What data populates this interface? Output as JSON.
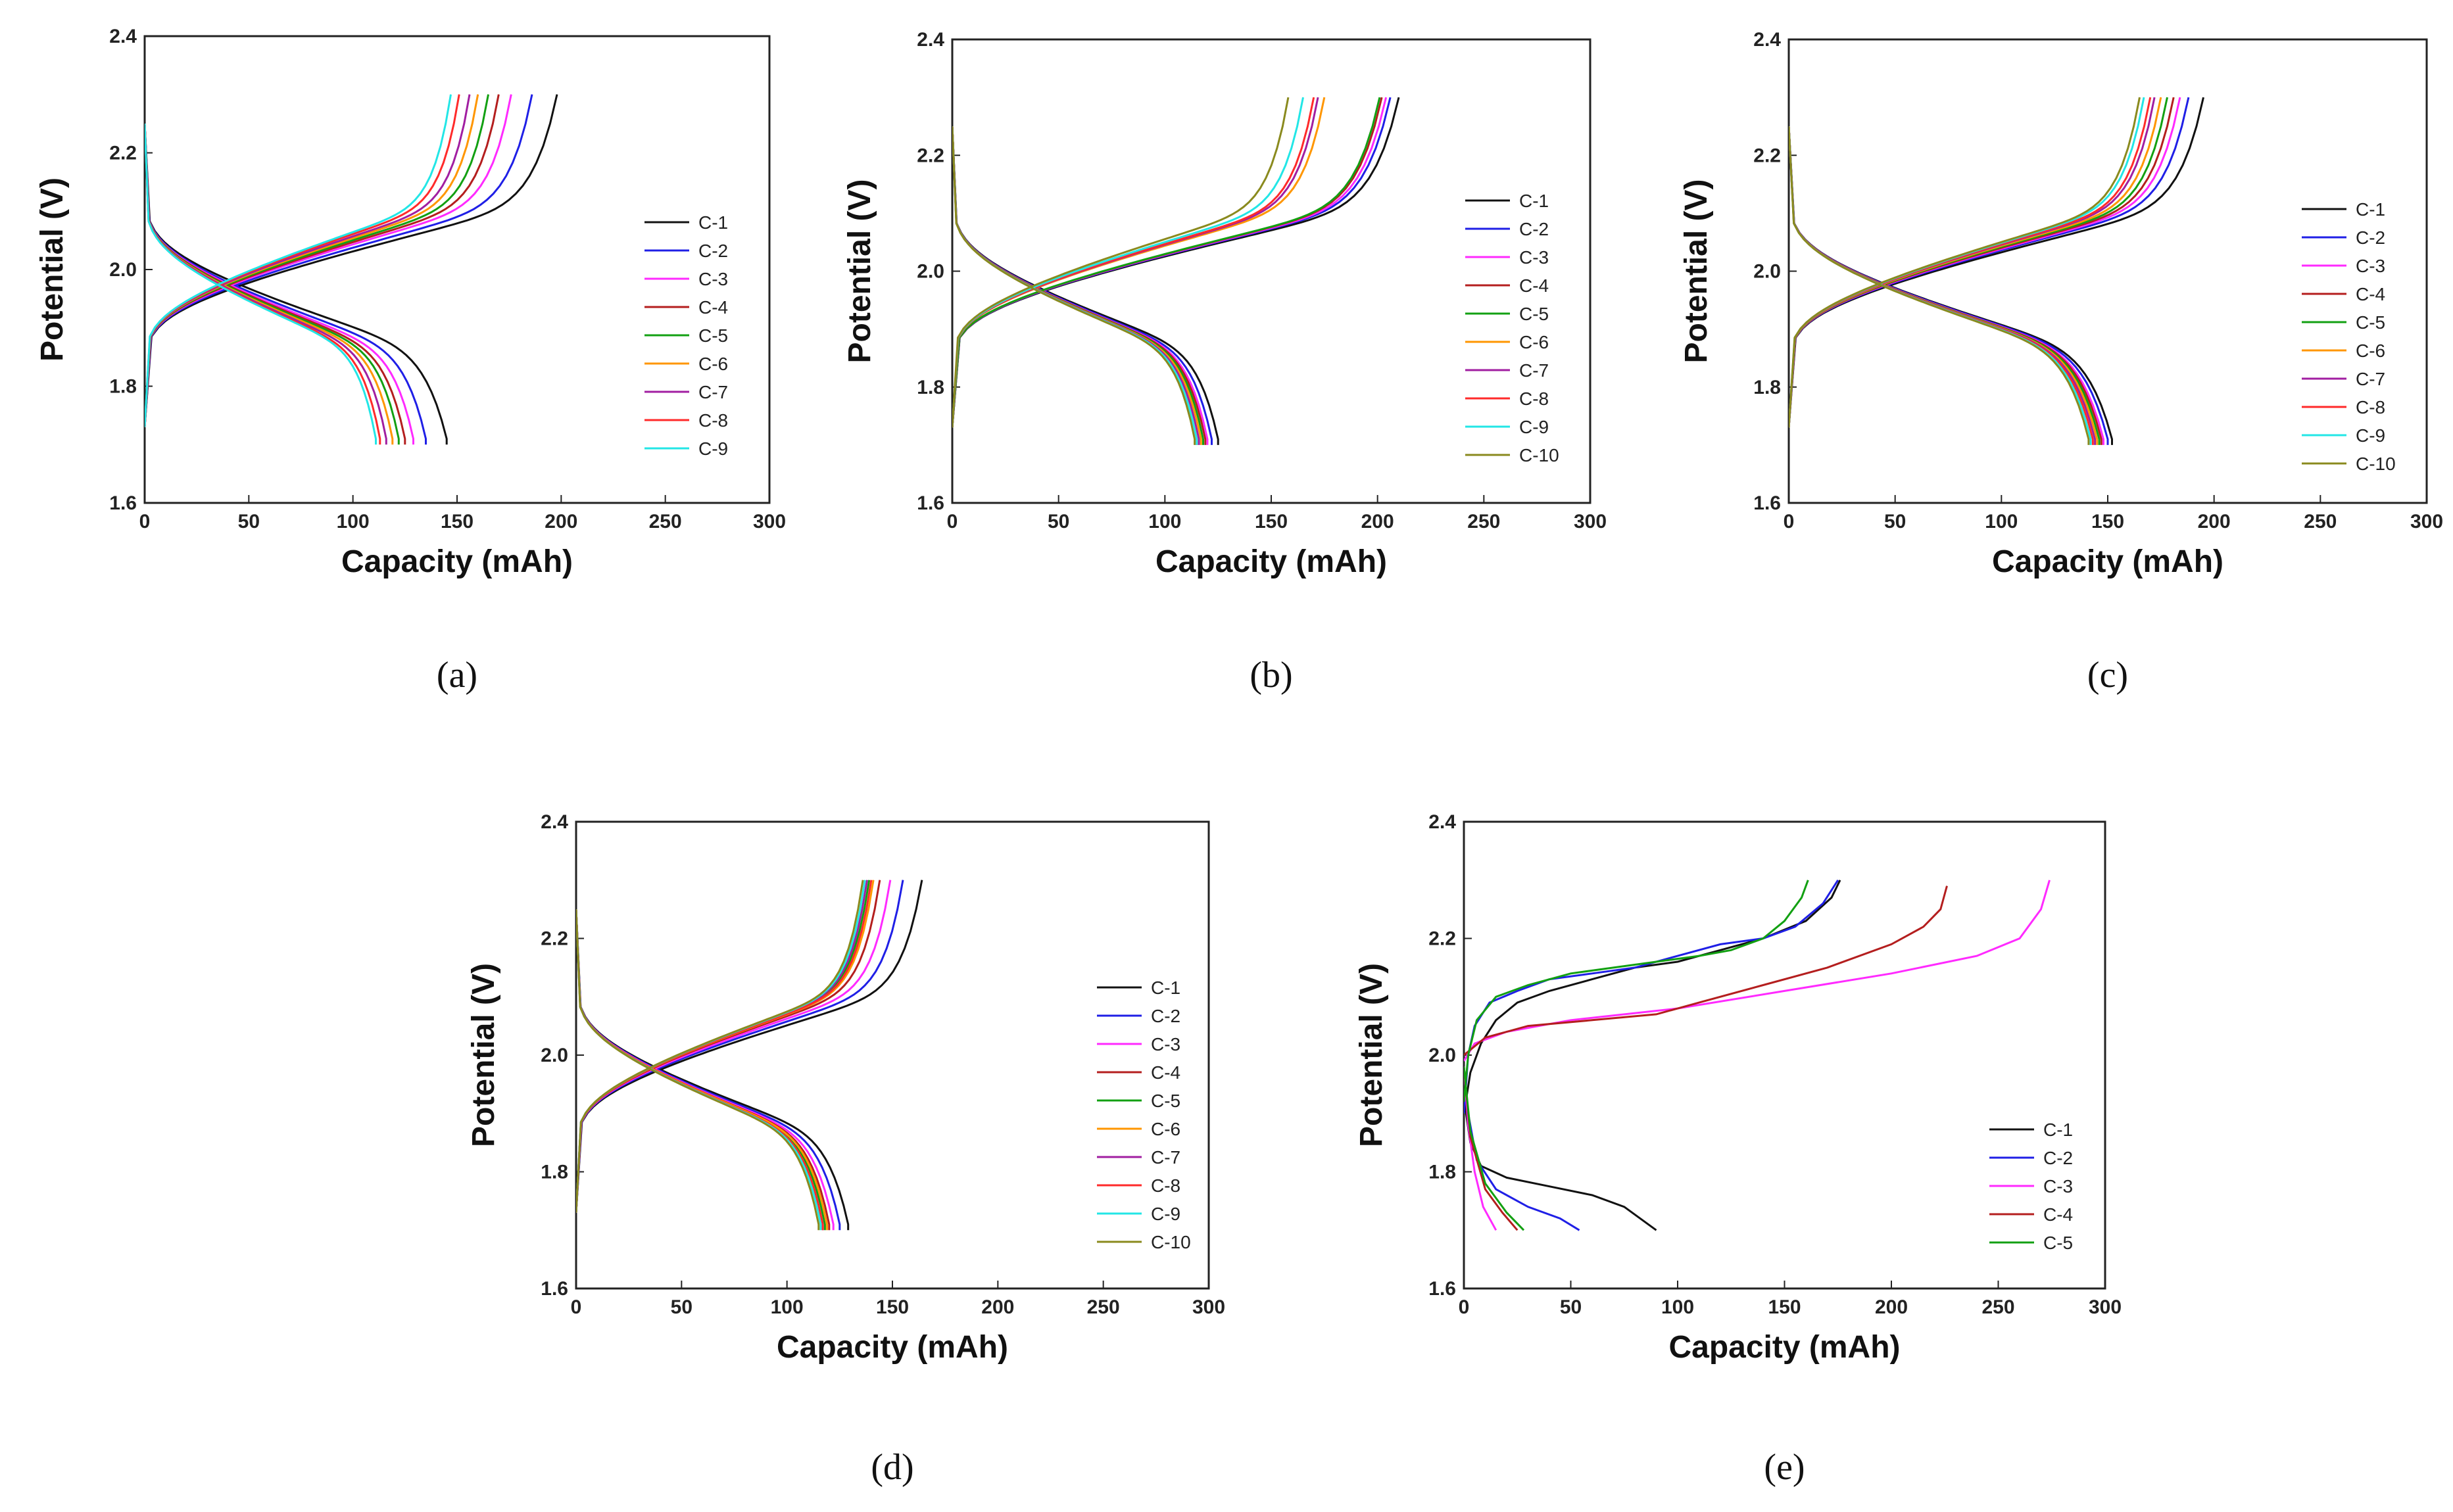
{
  "colors": {
    "C-1": "#111111",
    "C-2": "#1f1fe6",
    "C-3": "#ff2aff",
    "C-4": "#b41e1e",
    "C-5": "#12a012",
    "C-6": "#ff9600",
    "C-7": "#a11ea1",
    "C-8": "#ff2a2a",
    "C-9": "#22e6e6",
    "C-10": "#8a8a1e"
  },
  "chart_data": [
    {
      "panel": "(a)",
      "type": "line",
      "xlabel": "Capacity (mAh)",
      "ylabel": "Potential (V)",
      "xlim": [
        0,
        300
      ],
      "ylim": [
        1.6,
        2.4
      ],
      "xticks": [
        "0",
        "50",
        "100",
        "150",
        "200",
        "250",
        "300"
      ],
      "yticks": [
        "1.6",
        "1.8",
        "2.0",
        "2.2",
        "2.4"
      ],
      "legend": "right",
      "series": [
        {
          "name": "C-1",
          "charge_end": 198,
          "discharge_end": 145
        },
        {
          "name": "C-2",
          "charge_end": 186,
          "discharge_end": 135
        },
        {
          "name": "C-3",
          "charge_end": 176,
          "discharge_end": 129
        },
        {
          "name": "C-4",
          "charge_end": 170,
          "discharge_end": 125
        },
        {
          "name": "C-5",
          "charge_end": 165,
          "discharge_end": 122
        },
        {
          "name": "C-6",
          "charge_end": 160,
          "discharge_end": 119
        },
        {
          "name": "C-7",
          "charge_end": 156,
          "discharge_end": 116
        },
        {
          "name": "C-8",
          "charge_end": 151,
          "discharge_end": 113
        },
        {
          "name": "C-9",
          "charge_end": 147,
          "discharge_end": 111
        }
      ]
    },
    {
      "panel": "(b)",
      "type": "line",
      "xlabel": "Capacity (mAh)",
      "ylabel": "Potential (V)",
      "xlim": [
        0,
        300
      ],
      "ylim": [
        1.6,
        2.4
      ],
      "xticks": [
        "0",
        "50",
        "100",
        "150",
        "200",
        "250",
        "300"
      ],
      "yticks": [
        "1.6",
        "1.8",
        "2.0",
        "2.2",
        "2.4"
      ],
      "legend": "right",
      "series": [
        {
          "name": "C-1",
          "charge_end": 210,
          "discharge_end": 125
        },
        {
          "name": "C-2",
          "charge_end": 206,
          "discharge_end": 122
        },
        {
          "name": "C-3",
          "charge_end": 204,
          "discharge_end": 120
        },
        {
          "name": "C-4",
          "charge_end": 202,
          "discharge_end": 119
        },
        {
          "name": "C-5",
          "charge_end": 201,
          "discharge_end": 118
        },
        {
          "name": "C-6",
          "charge_end": 175,
          "discharge_end": 117
        },
        {
          "name": "C-7",
          "charge_end": 172,
          "discharge_end": 116
        },
        {
          "name": "C-8",
          "charge_end": 170,
          "discharge_end": 115
        },
        {
          "name": "C-9",
          "charge_end": 165,
          "discharge_end": 115
        },
        {
          "name": "C-10",
          "charge_end": 158,
          "discharge_end": 114
        }
      ]
    },
    {
      "panel": "(c)",
      "type": "line",
      "xlabel": "Capacity (mAh)",
      "ylabel": "Potential (V)",
      "xlim": [
        0,
        300
      ],
      "ylim": [
        1.6,
        2.4
      ],
      "xticks": [
        "0",
        "50",
        "100",
        "150",
        "200",
        "250",
        "300"
      ],
      "yticks": [
        "1.6",
        "1.8",
        "2.0",
        "2.2",
        "2.4"
      ],
      "legend": "right",
      "series": [
        {
          "name": "C-1",
          "charge_end": 195,
          "discharge_end": 152
        },
        {
          "name": "C-2",
          "charge_end": 188,
          "discharge_end": 150
        },
        {
          "name": "C-3",
          "charge_end": 184,
          "discharge_end": 148
        },
        {
          "name": "C-4",
          "charge_end": 181,
          "discharge_end": 147
        },
        {
          "name": "C-5",
          "charge_end": 178,
          "discharge_end": 146
        },
        {
          "name": "C-6",
          "charge_end": 175,
          "discharge_end": 145
        },
        {
          "name": "C-7",
          "charge_end": 172,
          "discharge_end": 144
        },
        {
          "name": "C-8",
          "charge_end": 170,
          "discharge_end": 143
        },
        {
          "name": "C-9",
          "charge_end": 167,
          "discharge_end": 142
        },
        {
          "name": "C-10",
          "charge_end": 165,
          "discharge_end": 141
        }
      ]
    },
    {
      "panel": "(d)",
      "type": "line",
      "xlabel": "Capacity (mAh)",
      "ylabel": "Potential (V)",
      "xlim": [
        0,
        300
      ],
      "ylim": [
        1.6,
        2.4
      ],
      "xticks": [
        "0",
        "50",
        "100",
        "150",
        "200",
        "250",
        "300"
      ],
      "yticks": [
        "1.6",
        "1.8",
        "2.0",
        "2.2",
        "2.4"
      ],
      "legend": "right",
      "series": [
        {
          "name": "C-1",
          "charge_end": 164,
          "discharge_end": 129
        },
        {
          "name": "C-2",
          "charge_end": 155,
          "discharge_end": 125
        },
        {
          "name": "C-3",
          "charge_end": 149,
          "discharge_end": 122
        },
        {
          "name": "C-4",
          "charge_end": 144,
          "discharge_end": 120
        },
        {
          "name": "C-5",
          "charge_end": 139,
          "discharge_end": 118
        },
        {
          "name": "C-6",
          "charge_end": 141,
          "discharge_end": 119
        },
        {
          "name": "C-7",
          "charge_end": 138,
          "discharge_end": 117
        },
        {
          "name": "C-8",
          "charge_end": 140,
          "discharge_end": 117
        },
        {
          "name": "C-9",
          "charge_end": 137,
          "discharge_end": 116
        },
        {
          "name": "C-10",
          "charge_end": 136,
          "discharge_end": 115
        }
      ]
    },
    {
      "panel": "(e)",
      "type": "line",
      "xlabel": "Capacity (mAh)",
      "ylabel": "Potential (V)",
      "xlim": [
        0,
        300
      ],
      "ylim": [
        1.6,
        2.4
      ],
      "xticks": [
        "0",
        "50",
        "100",
        "150",
        "200",
        "250",
        "300"
      ],
      "yticks": [
        "1.6",
        "1.8",
        "2.0",
        "2.2",
        "2.4"
      ],
      "legend": "bottom-right",
      "series": [
        {
          "name": "C-1",
          "charge": [
            [
              0,
              1.9
            ],
            [
              3,
              1.97
            ],
            [
              8,
              2.02
            ],
            [
              15,
              2.06
            ],
            [
              25,
              2.09
            ],
            [
              40,
              2.11
            ],
            [
              60,
              2.13
            ],
            [
              80,
              2.15
            ],
            [
              100,
              2.16
            ],
            [
              120,
              2.18
            ],
            [
              140,
              2.2
            ],
            [
              160,
              2.23
            ],
            [
              172,
              2.27
            ],
            [
              176,
              2.3
            ]
          ],
          "discharge": [
            [
              0,
              1.98
            ],
            [
              1,
              1.9
            ],
            [
              3,
              1.85
            ],
            [
              8,
              1.81
            ],
            [
              20,
              1.79
            ],
            [
              40,
              1.775
            ],
            [
              60,
              1.76
            ],
            [
              75,
              1.74
            ],
            [
              90,
              1.7
            ]
          ]
        },
        {
          "name": "C-2",
          "charge": [
            [
              0,
              1.9
            ],
            [
              2,
              2.0
            ],
            [
              5,
              2.05
            ],
            [
              12,
              2.09
            ],
            [
              25,
              2.11
            ],
            [
              40,
              2.13
            ],
            [
              60,
              2.14
            ],
            [
              80,
              2.15
            ],
            [
              100,
              2.17
            ],
            [
              120,
              2.19
            ],
            [
              140,
              2.2
            ],
            [
              155,
              2.22
            ],
            [
              168,
              2.26
            ],
            [
              175,
              2.3
            ]
          ],
          "discharge": [
            [
              0,
              1.98
            ],
            [
              2,
              1.9
            ],
            [
              6,
              1.82
            ],
            [
              15,
              1.77
            ],
            [
              30,
              1.74
            ],
            [
              45,
              1.72
            ],
            [
              54,
              1.7
            ]
          ]
        },
        {
          "name": "C-3",
          "charge": [
            [
              0,
              1.99
            ],
            [
              5,
              2.02
            ],
            [
              20,
              2.04
            ],
            [
              50,
              2.06
            ],
            [
              100,
              2.08
            ],
            [
              150,
              2.11
            ],
            [
              200,
              2.14
            ],
            [
              240,
              2.17
            ],
            [
              260,
              2.2
            ],
            [
              270,
              2.25
            ],
            [
              274,
              2.3
            ]
          ],
          "discharge": [
            [
              0,
              1.98
            ],
            [
              2,
              1.88
            ],
            [
              5,
              1.8
            ],
            [
              9,
              1.74
            ],
            [
              15,
              1.7
            ]
          ]
        },
        {
          "name": "C-4",
          "charge": [
            [
              0,
              2.0
            ],
            [
              10,
              2.03
            ],
            [
              30,
              2.05
            ],
            [
              60,
              2.06
            ],
            [
              90,
              2.07
            ],
            [
              110,
              2.09
            ],
            [
              140,
              2.12
            ],
            [
              170,
              2.15
            ],
            [
              200,
              2.19
            ],
            [
              215,
              2.22
            ],
            [
              223,
              2.25
            ],
            [
              226,
              2.29
            ]
          ],
          "discharge": [
            [
              0,
              1.98
            ],
            [
              3,
              1.86
            ],
            [
              10,
              1.77
            ],
            [
              18,
              1.73
            ],
            [
              25,
              1.7
            ]
          ]
        },
        {
          "name": "C-5",
          "charge": [
            [
              0,
              1.92
            ],
            [
              2,
              2.0
            ],
            [
              6,
              2.06
            ],
            [
              15,
              2.1
            ],
            [
              30,
              2.12
            ],
            [
              50,
              2.14
            ],
            [
              70,
              2.15
            ],
            [
              90,
              2.16
            ],
            [
              110,
              2.17
            ],
            [
              125,
              2.18
            ],
            [
              140,
              2.2
            ],
            [
              150,
              2.23
            ],
            [
              158,
              2.27
            ],
            [
              161,
              2.3
            ]
          ],
          "discharge": [
            [
              0,
              1.98
            ],
            [
              3,
              1.87
            ],
            [
              10,
              1.78
            ],
            [
              20,
              1.73
            ],
            [
              28,
              1.7
            ]
          ]
        }
      ]
    }
  ]
}
